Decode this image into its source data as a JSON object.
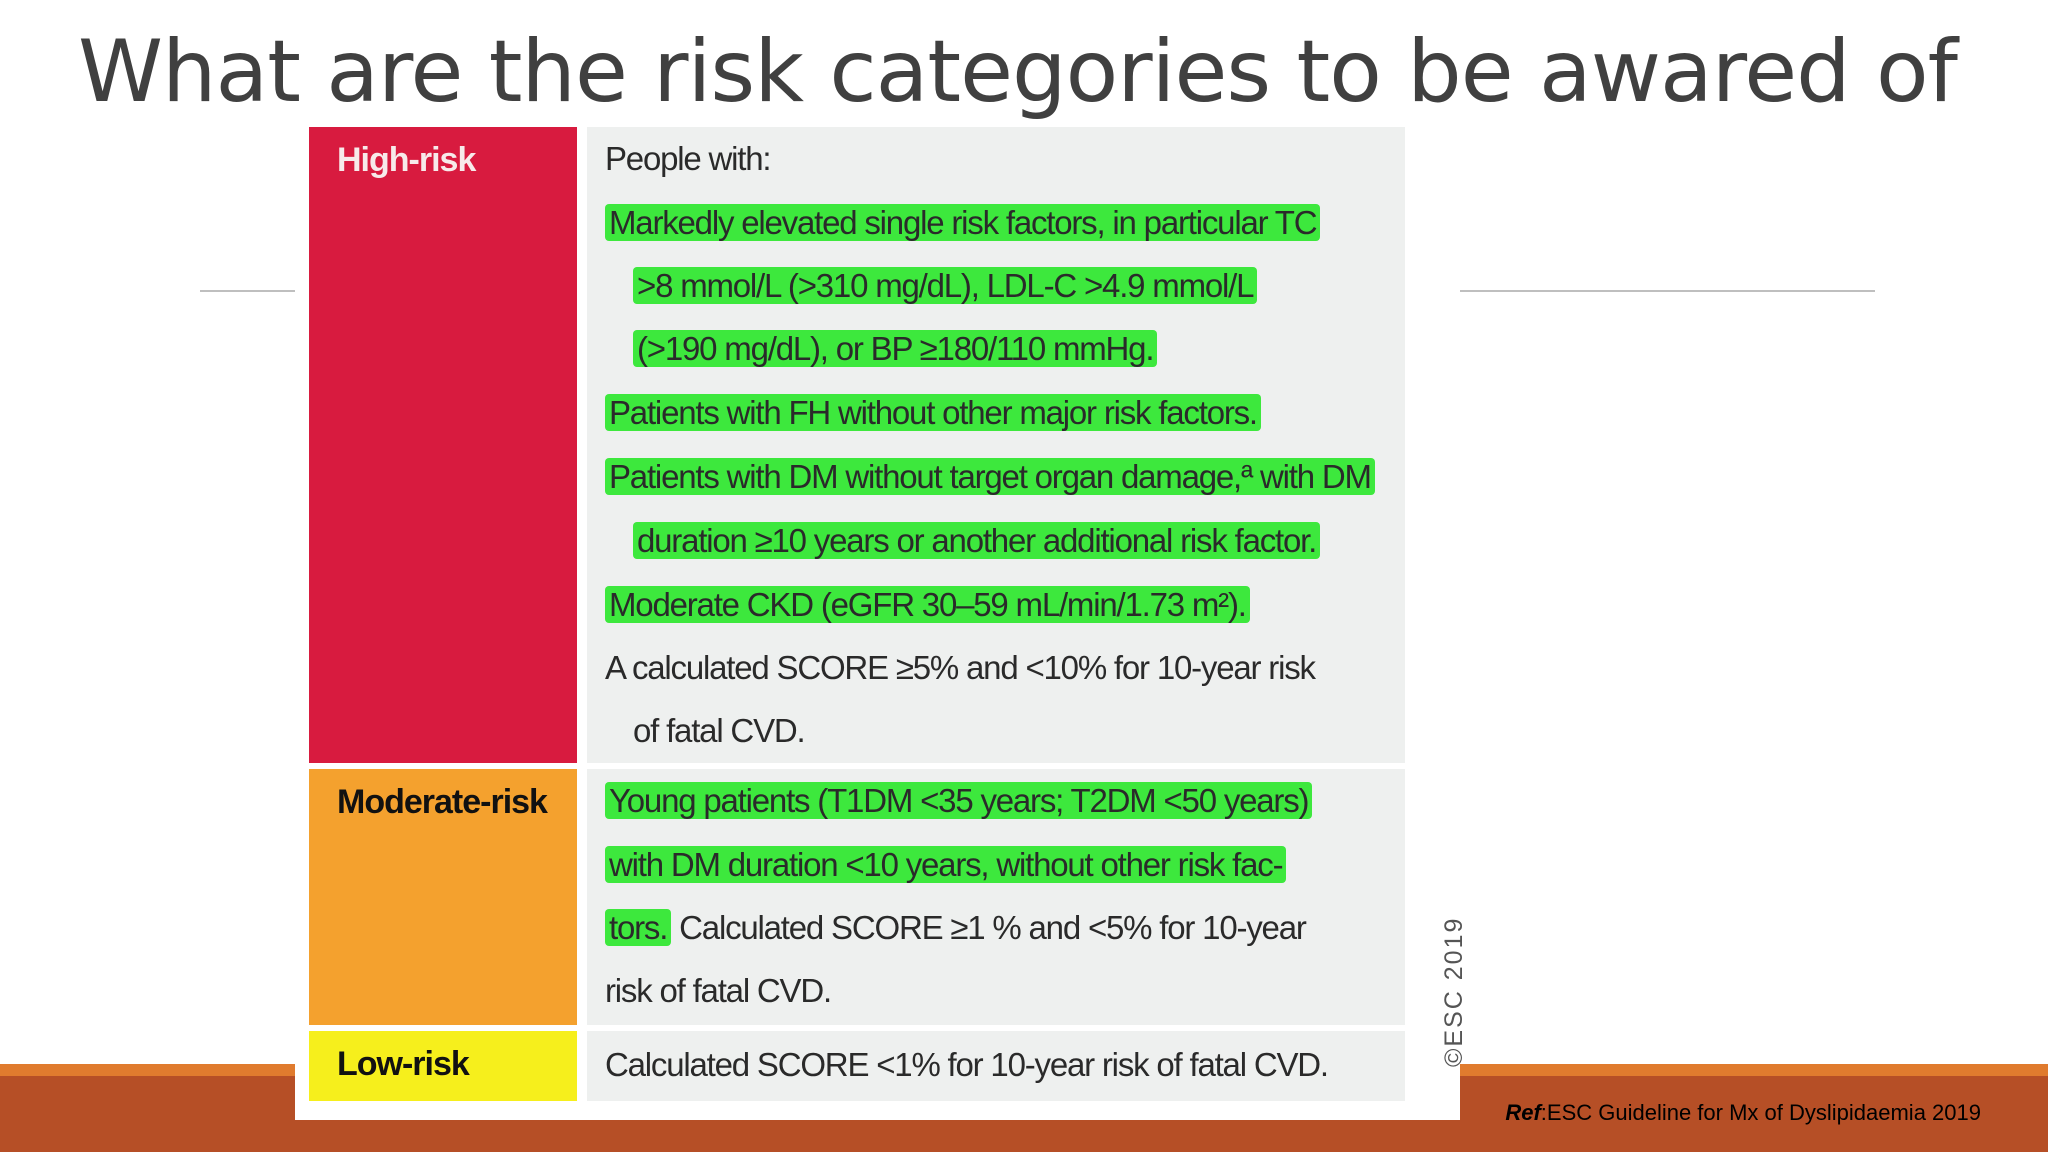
{
  "slide": {
    "title": "What are the risk categories  to be awared of",
    "reference_label": "Ref",
    "reference_text": ":ESC Guideline for Mx of Dyslipidaemia 2019"
  },
  "figure": {
    "watermark": "©ESC 2019",
    "rows": [
      {
        "category": "High-risk",
        "lines": [
          {
            "text": "People with:",
            "highlight": false
          },
          {
            "text": "Markedly elevated single risk factors, in particular TC",
            "highlight": true
          },
          {
            "text": ">8 mmol/L (>310 mg/dL), LDL-C >4.9 mmol/L",
            "highlight": true
          },
          {
            "text": "(>190 mg/dL), or BP ≥180/110 mmHg.",
            "highlight": true
          },
          {
            "text": "Patients with FH without other major risk factors.",
            "highlight": true
          },
          {
            "text": "Patients with DM without target organ damage,ª with DM",
            "highlight": true
          },
          {
            "text": "duration ≥10 years or another additional risk factor.",
            "highlight": true
          },
          {
            "text": "Moderate CKD (eGFR 30–59 mL/min/1.73 m²).",
            "highlight": true
          },
          {
            "text": "A calculated SCORE ≥5% and <10% for 10-year risk",
            "highlight": false
          },
          {
            "text": "of fatal CVD.",
            "highlight": false
          }
        ]
      },
      {
        "category": "Moderate-risk",
        "lines": [
          {
            "text": "Young patients (T1DM <35 years; T2DM <50 years)",
            "highlight": true
          },
          {
            "text": "with DM duration <10 years, without other risk fac-",
            "highlight": true
          },
          {
            "text": "tors.",
            "highlight": true
          },
          {
            "text": " Calculated SCORE ≥1 % and <5% for 10-year",
            "highlight": false
          },
          {
            "text": "risk of fatal CVD.",
            "highlight": false
          }
        ]
      },
      {
        "category": "Low-risk",
        "lines": [
          {
            "text": "Calculated SCORE <1% for 10-year risk of fatal CVD.",
            "highlight": false
          }
        ]
      }
    ]
  },
  "colors": {
    "high_risk": "#d81b3f",
    "moderate_risk": "#f4a12e",
    "low_risk": "#f6ef1c",
    "highlight": "#3de83d",
    "footer_band": "#b64f26",
    "footer_accent": "#e07b2e"
  }
}
